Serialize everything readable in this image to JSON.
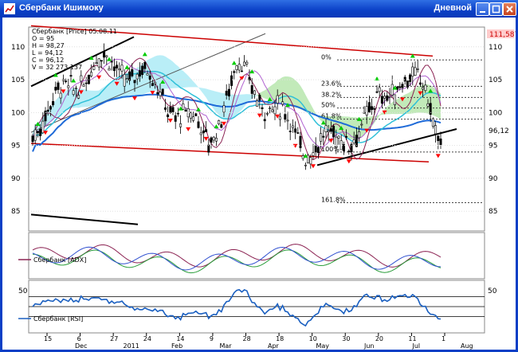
{
  "window": {
    "title": "Сбербанк Ишимоку",
    "period": "Дневной",
    "buttons": [
      "minimize",
      "maximize",
      "close"
    ]
  },
  "price_panel": {
    "legend_lines": [
      "Сбербанк [Price] 05.08.11",
      "O = 95",
      "H = 98,27",
      "L = 94,12",
      "C = 96,12",
      "V = 32 273 137"
    ],
    "current_price_label": "111,587",
    "last_close_label": "96,12",
    "right_axis_ticks": [
      "110",
      "105",
      "100",
      "95",
      "90",
      "85"
    ],
    "left_axis_ticks": [
      "110",
      "105",
      "100",
      "95",
      "90",
      "85"
    ],
    "fib_labels": [
      "0%",
      "23.6%",
      "38.2%",
      "50%",
      "61.8%",
      "100%",
      "161.8%"
    ]
  },
  "adx_panel": {
    "name": "Сбербанк [ADX]"
  },
  "rsi_panel": {
    "name": "Сбербанк [RSI]",
    "level_label_left": "50",
    "level_label_right": "50"
  },
  "date_axis": {
    "day_labels": [
      "15",
      "6",
      "27",
      "24",
      "14",
      "9",
      "28",
      "18",
      "10",
      "30",
      "20",
      "11",
      "1"
    ],
    "month_labels": [
      "Dec",
      "2011",
      "Feb",
      "Mar",
      "Apr",
      "May",
      "Jun",
      "Jul",
      "Aug"
    ]
  },
  "colors": {
    "title_bar": "#0a3fc6",
    "price_label_bg": "#ffcccc",
    "trend_red": "#cc0000",
    "trend_black": "#000000",
    "kijun_blue": "#1e6ad8",
    "tenkan_cyan": "#30c0d8",
    "cloud_cyan": "#80e0f0",
    "cloud_green": "#c8e890",
    "buy_arrow": "#00cc00",
    "sell_arrow": "#ff0000",
    "rsi_line": "#1a5fc0"
  },
  "chart_data": {
    "type": "line",
    "title": "Сбербанк [Price] 05.08.11",
    "ylim": [
      82,
      113
    ],
    "x_range": [
      "2010-11-15",
      "2011-08-05"
    ],
    "last_bar": {
      "date": "2011-08-05",
      "open": 95,
      "high": 98.27,
      "low": 94.12,
      "close": 96.12,
      "volume": 32273137
    },
    "series": [
      {
        "name": "Сбербанк [Price]",
        "x": [
          "2010-11-15",
          "2010-12-06",
          "2010-12-27",
          "2011-01-24",
          "2011-02-14",
          "2011-03-09",
          "2011-03-28",
          "2011-04-18",
          "2011-05-10",
          "2011-05-30",
          "2011-06-20",
          "2011-07-11",
          "2011-07-25",
          "2011-08-05"
        ],
        "values": [
          97.5,
          103,
          107.5,
          106,
          101,
          96,
          106.5,
          101,
          95,
          95.5,
          99,
          106,
          103,
          96.12
        ]
      }
    ],
    "fibonacci_levels": [
      {
        "label": "0%",
        "value": 108
      },
      {
        "label": "23.6%",
        "value": 104
      },
      {
        "label": "38.2%",
        "value": 102.3
      },
      {
        "label": "50%",
        "value": 100.7
      },
      {
        "label": "61.8%",
        "value": 99
      },
      {
        "label": "100%",
        "value": 94
      },
      {
        "label": "161.8%",
        "value": 86.3
      }
    ]
  },
  "adx_chart_data": {
    "type": "line",
    "ylim": [
      0,
      60
    ]
  },
  "rsi_chart_data": {
    "type": "line",
    "ylim": [
      0,
      100
    ],
    "levels": [
      50
    ]
  }
}
